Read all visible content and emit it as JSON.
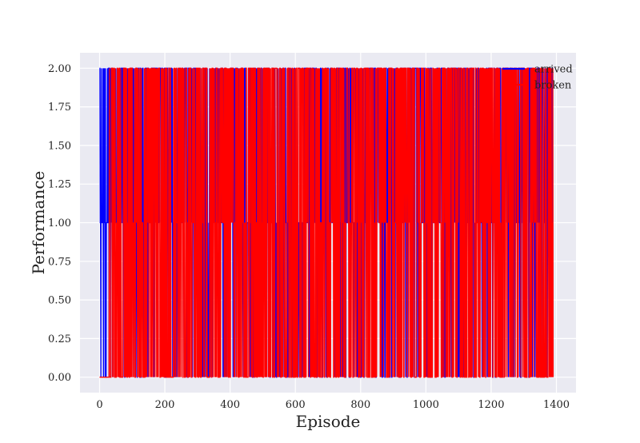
{
  "chart_data": {
    "type": "line",
    "title": "",
    "xlabel": "Episode",
    "ylabel": "Performance",
    "xlim": [
      -60,
      1460
    ],
    "ylim": [
      -0.1,
      2.1
    ],
    "xticks": [
      0,
      200,
      400,
      600,
      800,
      1000,
      1200,
      1400
    ],
    "yticks": [
      0.0,
      0.25,
      0.5,
      0.75,
      1.0,
      1.25,
      1.5,
      1.75,
      2.0
    ],
    "ytick_labels": [
      "0.00",
      "0.25",
      "0.50",
      "0.75",
      "1.00",
      "1.25",
      "1.50",
      "1.75",
      "2.00"
    ],
    "grid": true,
    "legend_position": "top-right",
    "x_range": [
      0,
      1390
    ],
    "series": [
      {
        "name": "arrived",
        "color": "#0000ff",
        "levels": [
          0,
          1,
          2
        ],
        "description_values": "values alternate between 0, 1 and 2 every episode",
        "x": [
          0,
          1390
        ]
      },
      {
        "name": "broken",
        "color": "#ff0000",
        "levels": [
          0,
          1,
          2
        ],
        "x": [
          0,
          1390
        ]
      }
    ],
    "plot_background": "#eaeaf2",
    "grid_color": "#ffffff"
  }
}
